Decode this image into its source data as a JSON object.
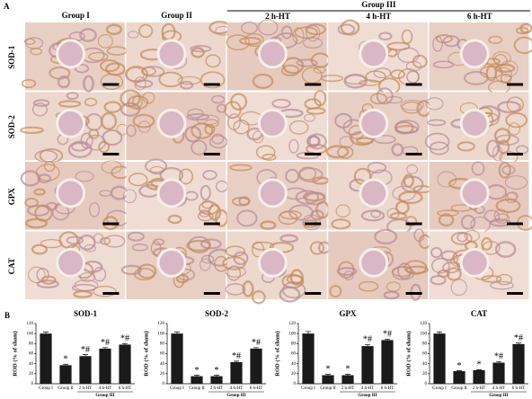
{
  "panel_a": {
    "label": "A",
    "group_headers": [
      "Group I",
      "Group II",
      "Group III"
    ],
    "subgroups": [
      "2 h-HT",
      "4 h-HT",
      "6 h-HT"
    ],
    "rows": [
      "SOD-1",
      "SOD-2",
      "GPX",
      "CAT"
    ]
  },
  "panel_b": {
    "label": "B"
  },
  "chart_data": [
    {
      "type": "bar",
      "title": "SOD-1",
      "y_label": "ROD (% of sham)",
      "categories": [
        "Group I",
        "Group II",
        "2 h-HT",
        "4 h-HT",
        "6 h-HT"
      ],
      "group_label": "Group III",
      "values": [
        100,
        37,
        55,
        70,
        78
      ],
      "errors": [
        3,
        2,
        3,
        2,
        2
      ],
      "annotations": [
        null,
        "*",
        "*#",
        "*#",
        "*#"
      ],
      "color": "#1a1a1a",
      "ylim": [
        0,
        120
      ],
      "yticks": [
        0,
        20,
        40,
        60,
        80,
        100,
        120
      ]
    },
    {
      "type": "bar",
      "title": "SOD-2",
      "y_label": "ROD (% of sham)",
      "categories": [
        "Group I",
        "Group II",
        "2 h-HT",
        "4 h-HT",
        "6 h-HT"
      ],
      "group_label": "Group III",
      "values": [
        100,
        15,
        15,
        43,
        70
      ],
      "errors": [
        3,
        2,
        2,
        2,
        2
      ],
      "annotations": [
        null,
        "*",
        "*",
        "*#",
        "*#"
      ],
      "color": "#1a1a1a",
      "ylim": [
        0,
        120
      ],
      "yticks": [
        0,
        20,
        40,
        60,
        80,
        100,
        120
      ]
    },
    {
      "type": "bar",
      "title": "GPX",
      "y_label": "ROD (% of sham)",
      "categories": [
        "Group I",
        "Group II",
        "2 h-HT",
        "4 h-HT",
        "6 h-HT"
      ],
      "group_label": "Group III",
      "values": [
        100,
        17,
        17,
        75,
        87
      ],
      "errors": [
        4,
        2,
        2,
        3,
        2
      ],
      "annotations": [
        null,
        "*",
        "*",
        "*#",
        "*#"
      ],
      "color": "#1a1a1a",
      "ylim": [
        0,
        120
      ],
      "yticks": [
        0,
        20,
        40,
        60,
        80,
        100,
        120
      ]
    },
    {
      "type": "bar",
      "title": "CAT",
      "y_label": "ROD (% of sham)",
      "categories": [
        "Group I",
        "Group II",
        "2 h-HT",
        "4 h-HT",
        "6 h-HT"
      ],
      "group_label": "Group III",
      "values": [
        100,
        25,
        27,
        42,
        79
      ],
      "errors": [
        3,
        1,
        1,
        2,
        2
      ],
      "annotations": [
        null,
        "*",
        "*",
        "*#",
        "*#"
      ],
      "color": "#1a1a1a",
      "ylim": [
        0,
        120
      ],
      "yticks": [
        0,
        20,
        40,
        60,
        80,
        100,
        120
      ]
    }
  ]
}
